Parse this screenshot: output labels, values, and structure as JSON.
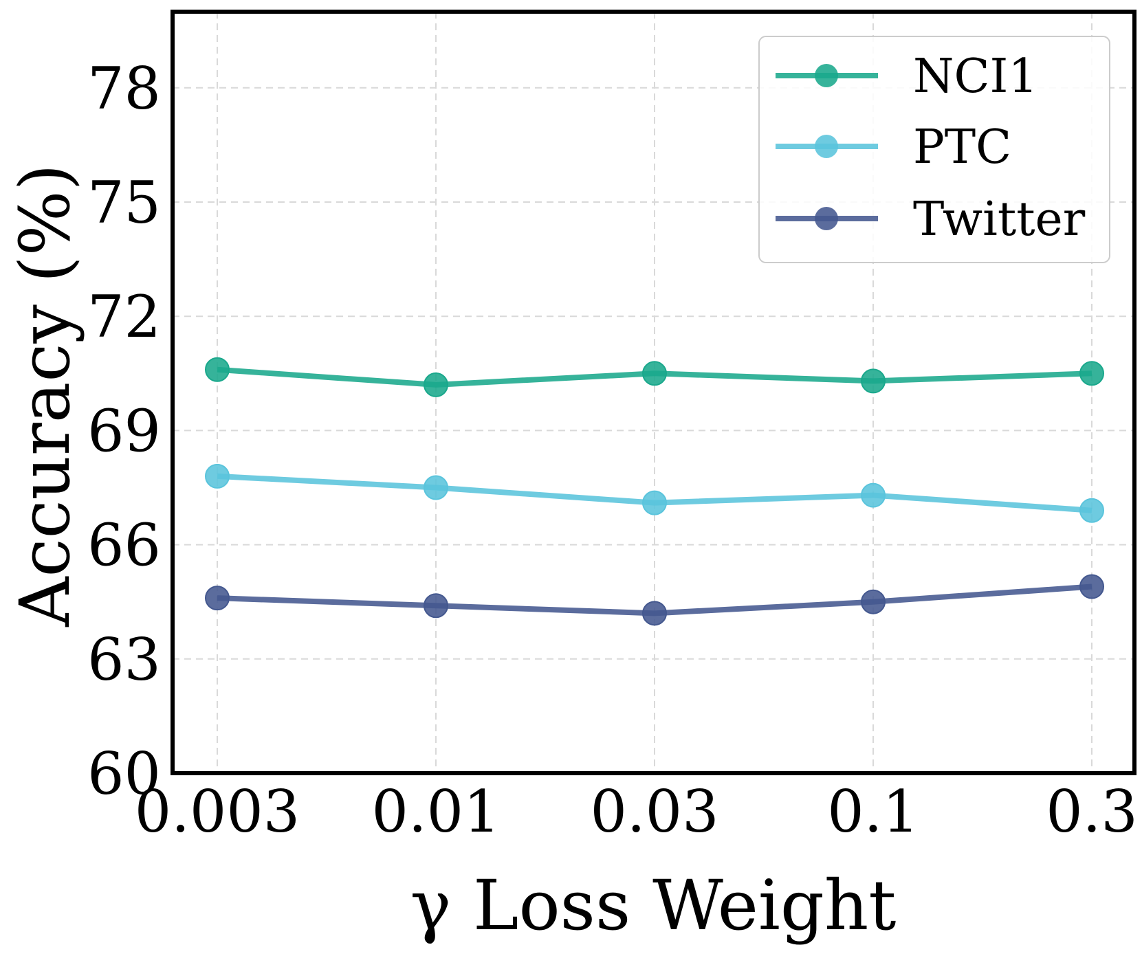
{
  "chart_data": {
    "type": "line",
    "title": "",
    "xlabel": "γ Loss Weight",
    "ylabel": "Accuracy (%)",
    "x": [
      "0.003",
      "0.01",
      "0.03",
      "0.1",
      "0.3"
    ],
    "ylim": [
      60,
      80
    ],
    "yticks": [
      "60",
      "63",
      "66",
      "69",
      "72",
      "75",
      "78"
    ],
    "grid": true,
    "legend_position": "top-right",
    "series": [
      {
        "name": "NCI1",
        "color": "#1aa88c",
        "values": [
          70.6,
          70.2,
          70.5,
          70.3,
          70.5
        ]
      },
      {
        "name": "PTC",
        "color": "#5ac4dc",
        "values": [
          67.8,
          67.5,
          67.1,
          67.3,
          66.9
        ]
      },
      {
        "name": "Twitter",
        "color": "#44588f",
        "values": [
          64.6,
          64.4,
          64.2,
          64.5,
          64.9
        ]
      }
    ]
  }
}
